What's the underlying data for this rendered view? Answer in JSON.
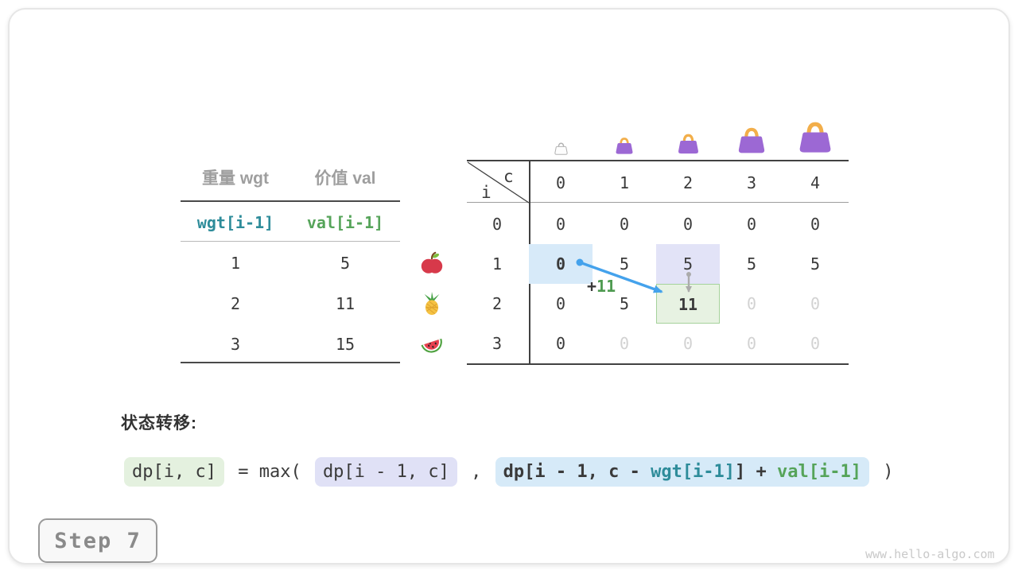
{
  "colors": {
    "accent_teal": "#2e8c9a",
    "accent_green": "#56a45a",
    "muted_value": "#d2d2d2",
    "gray_header": "#9e9e9e",
    "dark_text": "#3a3a3a",
    "arrow_blue": "#44a2ec",
    "arrow_gray": "#ababab",
    "cell_blue_bg": "#d7eaf9",
    "cell_lavender_bg": "#e2e3f7",
    "cell_green_bg": "#e7f2e2",
    "cell_green_border": "#a5d29b",
    "bag_purple": "#9c68d4",
    "bag_handle": "#f2ae4a"
  },
  "item_table": {
    "col_headers": [
      "重量 wgt",
      "价值 val"
    ],
    "var_row": {
      "wgt": "wgt[i-1]",
      "val": "val[i-1]"
    },
    "rows": [
      {
        "wgt": "1",
        "val": "5",
        "icon": "apple-icon"
      },
      {
        "wgt": "2",
        "val": "11",
        "icon": "pineapple-icon"
      },
      {
        "wgt": "3",
        "val": "15",
        "icon": "watermelon-icon"
      }
    ]
  },
  "dp_table": {
    "corner_col_label": "c",
    "corner_row_label": "i",
    "col_headers": [
      "0",
      "1",
      "2",
      "3",
      "4"
    ],
    "bag_icons": [
      "bag-empty-icon",
      "bag-capacity-1-icon",
      "bag-capacity-2-icon",
      "bag-capacity-3-icon",
      "bag-capacity-4-icon"
    ],
    "rows": [
      {
        "label": "0",
        "cells": [
          {
            "v": "0"
          },
          {
            "v": "0"
          },
          {
            "v": "0"
          },
          {
            "v": "0"
          },
          {
            "v": "0"
          }
        ]
      },
      {
        "label": "1",
        "cells": [
          {
            "v": "0",
            "bold": true,
            "bg": "blue"
          },
          {
            "v": "5"
          },
          {
            "v": "5",
            "bg": "lavender"
          },
          {
            "v": "5"
          },
          {
            "v": "5"
          }
        ]
      },
      {
        "label": "2",
        "cells": [
          {
            "v": "0"
          },
          {
            "v": "5"
          },
          {
            "v": "11",
            "bold": true,
            "bg": "green"
          },
          {
            "v": "0",
            "muted": true
          },
          {
            "v": "0",
            "muted": true
          }
        ]
      },
      {
        "label": "3",
        "cells": [
          {
            "v": "0"
          },
          {
            "v": "0",
            "muted": true
          },
          {
            "v": "0",
            "muted": true
          },
          {
            "v": "0",
            "muted": true
          },
          {
            "v": "0",
            "muted": true
          }
        ]
      }
    ]
  },
  "annotation": {
    "plus": "+",
    "value": "11"
  },
  "transition": {
    "label": "状态转移:",
    "tokens": [
      {
        "text": "dp[i, c]",
        "box": "green"
      },
      {
        "text": " = max( ",
        "box": null
      },
      {
        "text": "dp[i - 1, c]",
        "box": "lavender"
      },
      {
        "text": " , ",
        "box": null
      },
      {
        "box": "blue",
        "parts": [
          {
            "text": "dp[i - 1, c - ",
            "color": "dark"
          },
          {
            "text": "wgt[i-1]",
            "color": "teal"
          },
          {
            "text": "] + ",
            "color": "dark"
          },
          {
            "text": "val[i-1]",
            "color": "grn"
          }
        ]
      },
      {
        "text": " )",
        "box": null
      }
    ]
  },
  "footer": {
    "step_label": "Step 7",
    "watermark": "www.hello-algo.com"
  }
}
